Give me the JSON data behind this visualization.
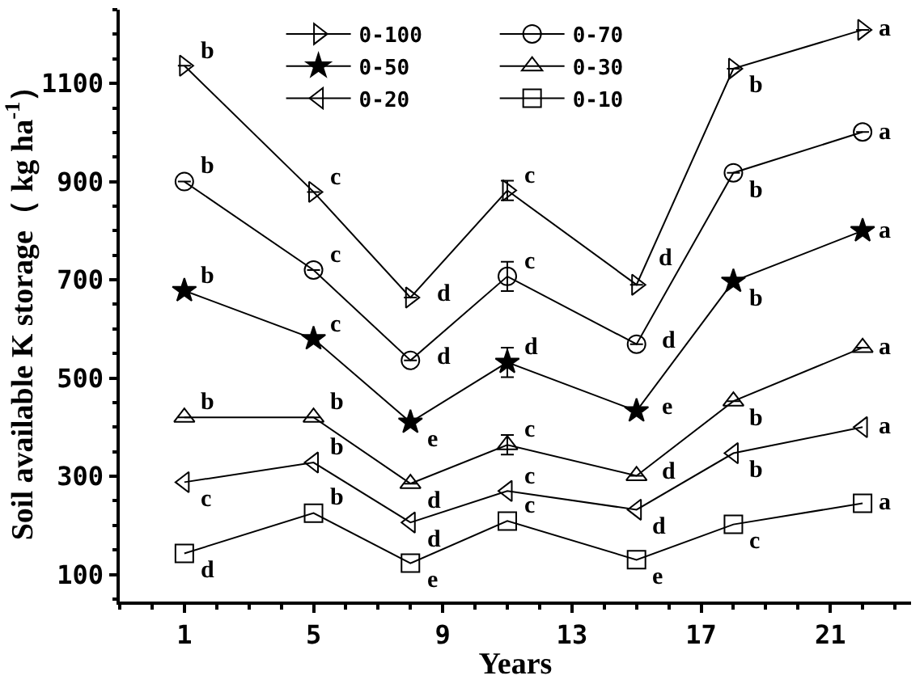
{
  "chart_data": {
    "type": "line",
    "xlabel": "Years",
    "ylabel": "Soil available K storage（ kg ha$^{-1}$）",
    "x": [
      1,
      5,
      8,
      11,
      15,
      18,
      22
    ],
    "xlim": [
      -1,
      23.5
    ],
    "xticks": [
      1,
      5,
      9,
      13,
      17,
      21
    ],
    "ylim": [
      45,
      1250
    ],
    "yticks": [
      100,
      300,
      500,
      700,
      900,
      1100
    ],
    "legend": "top",
    "line_style": "solid",
    "series": [
      {
        "name": "0-100",
        "color": "#000000",
        "marker": "triangle-right-open",
        "values": [
          1136,
          879,
          664,
          882,
          690,
          1130,
          1209
        ],
        "errors": [
          null,
          null,
          null,
          20,
          null,
          null,
          null
        ]
      },
      {
        "name": "0-70",
        "color": "#000000",
        "marker": "circle-open",
        "values": [
          900,
          720,
          536,
          707,
          569,
          918,
          1001
        ],
        "errors": [
          null,
          null,
          null,
          30,
          null,
          null,
          null
        ]
      },
      {
        "name": "0-50",
        "color": "#000000",
        "marker": "star",
        "values": [
          678,
          580,
          410,
          532,
          433,
          697,
          800
        ],
        "errors": [
          null,
          null,
          null,
          30,
          null,
          null,
          null
        ]
      },
      {
        "name": "0-30",
        "color": "#000000",
        "marker": "triangle-up-open",
        "values": [
          420,
          420,
          285,
          364,
          301,
          453,
          562
        ],
        "errors": [
          null,
          null,
          null,
          20,
          null,
          null,
          null
        ]
      },
      {
        "name": "0-20",
        "color": "#000000",
        "marker": "triangle-left-open",
        "values": [
          288,
          328,
          206,
          270,
          232,
          347,
          400
        ]
      },
      {
        "name": "0-10",
        "color": "#000000",
        "marker": "square-open",
        "values": [
          143,
          225,
          123,
          209,
          130,
          202,
          245
        ]
      }
    ],
    "annotations": [
      {
        "text": "b",
        "x": 1,
        "y": 1136
      },
      {
        "text": "c",
        "x": 5,
        "y": 879
      },
      {
        "text": "d",
        "x": 8,
        "y": 664
      },
      {
        "text": "c",
        "x": 11,
        "y": 882
      },
      {
        "text": "d",
        "x": 15,
        "y": 690
      },
      {
        "text": "b",
        "x": 18,
        "y": 1130
      },
      {
        "text": "a",
        "x": 22,
        "y": 1209
      },
      {
        "text": "b",
        "x": 1,
        "y": 900
      },
      {
        "text": "c",
        "x": 5,
        "y": 720
      },
      {
        "text": "d",
        "x": 8,
        "y": 536
      },
      {
        "text": "c",
        "x": 11,
        "y": 707
      },
      {
        "text": "d",
        "x": 15,
        "y": 569
      },
      {
        "text": "b",
        "x": 18,
        "y": 918
      },
      {
        "text": "a",
        "x": 22,
        "y": 1001
      },
      {
        "text": "b",
        "x": 1,
        "y": 678
      },
      {
        "text": "c",
        "x": 5,
        "y": 580
      },
      {
        "text": "e",
        "x": 8,
        "y": 410
      },
      {
        "text": "d",
        "x": 11,
        "y": 532
      },
      {
        "text": "e",
        "x": 15,
        "y": 433
      },
      {
        "text": "b",
        "x": 18,
        "y": 697
      },
      {
        "text": "a",
        "x": 22,
        "y": 800
      },
      {
        "text": "b",
        "x": 1,
        "y": 420
      },
      {
        "text": "b",
        "x": 5,
        "y": 420
      },
      {
        "text": "d",
        "x": 8,
        "y": 285
      },
      {
        "text": "c",
        "x": 11,
        "y": 364
      },
      {
        "text": "d",
        "x": 15,
        "y": 301
      },
      {
        "text": "b",
        "x": 18,
        "y": 453
      },
      {
        "text": "a",
        "x": 22,
        "y": 562
      },
      {
        "text": "c",
        "x": 1,
        "y": 288
      },
      {
        "text": "b",
        "x": 5,
        "y": 328
      },
      {
        "text": "d",
        "x": 8,
        "y": 206
      },
      {
        "text": "c",
        "x": 11,
        "y": 270
      },
      {
        "text": "d",
        "x": 15,
        "y": 232
      },
      {
        "text": "b",
        "x": 18,
        "y": 347
      },
      {
        "text": "a",
        "x": 22,
        "y": 400
      },
      {
        "text": "d",
        "x": 1,
        "y": 143
      },
      {
        "text": "b",
        "x": 5,
        "y": 225
      },
      {
        "text": "e",
        "x": 8,
        "y": 123
      },
      {
        "text": "c",
        "x": 11,
        "y": 209
      },
      {
        "text": "e",
        "x": 15,
        "y": 130
      },
      {
        "text": "c",
        "x": 18,
        "y": 202
      },
      {
        "text": "a",
        "x": 22,
        "y": 245
      }
    ]
  }
}
